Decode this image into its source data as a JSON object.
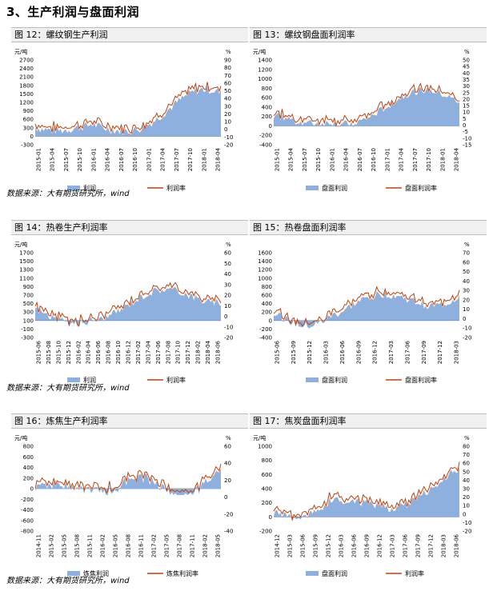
{
  "section_title": "3、生产利润与盘面利润",
  "sources": [
    "数据来源：大有期货研究所，wind",
    "数据来源：大有期货研究所，wind",
    "数据来源：大有期货研究所，wind"
  ],
  "colors": {
    "area": "#8eb0de",
    "line": "#c0420c",
    "header_bg": "#f0f0f0"
  },
  "figures": [
    {
      "title": "图 12：螺纹钢生产利润",
      "y_unit": "元/吨",
      "y2_unit": "%",
      "y_ticks": [
        "2700",
        "2400",
        "2100",
        "1800",
        "1500",
        "1200",
        "900",
        "600",
        "300",
        "0",
        "-300"
      ],
      "y2_ticks": [
        "90",
        "80",
        "70",
        "60",
        "50",
        "40",
        "30",
        "20",
        "10",
        "0",
        "-10",
        "-20"
      ],
      "x_ticks": [
        "2015-01",
        "2015-04",
        "2015-07",
        "2015-10",
        "2016-01",
        "2016-04",
        "2016-07",
        "2016-10",
        "2017-01",
        "2017-04",
        "2017-07",
        "2017-10",
        "2018-01",
        "2018-04"
      ],
      "legend": [
        "利润",
        "利润率"
      ]
    },
    {
      "title": "图 13：螺纹钢盘面利润率",
      "y_unit": "元/吨",
      "y2_unit": "%",
      "y_ticks": [
        "1400",
        "1200",
        "1000",
        "800",
        "600",
        "400",
        "200",
        "0",
        "-200",
        "-400"
      ],
      "y2_ticks": [
        "50",
        "45",
        "40",
        "35",
        "30",
        "25",
        "20",
        "15",
        "10",
        "5",
        "0",
        "-5",
        "-10",
        "-15"
      ],
      "x_ticks": [
        "2015-01",
        "2015-04",
        "2015-07",
        "2015-10",
        "2016-01",
        "2016-04",
        "2016-07",
        "2016-10",
        "2017-01",
        "2017-04",
        "2017-07",
        "2017-10",
        "2018-01",
        "2018-04"
      ],
      "legend": [
        "盘面利润",
        "盘面利润率"
      ]
    },
    {
      "title": "图 14：热卷生产利润率",
      "y_unit": "元/吨",
      "y2_unit": "%",
      "y_ticks": [
        "1700",
        "1500",
        "1300",
        "1100",
        "900",
        "700",
        "500",
        "300",
        "100",
        "-100",
        "-300"
      ],
      "y2_ticks": [
        "60",
        "50",
        "40",
        "30",
        "20",
        "10",
        "0",
        "-10",
        "-20"
      ],
      "x_ticks": [
        "2015-06",
        "2015-08",
        "2015-10",
        "2015-12",
        "2016-02",
        "2016-04",
        "2016-06",
        "2016-08",
        "2016-10",
        "2016-12",
        "2017-02",
        "2017-04",
        "2017-06",
        "2017-08",
        "2017-10",
        "2017-12",
        "2018-02",
        "2018-04",
        "2018-06"
      ],
      "legend": [
        "利润",
        "利润率"
      ]
    },
    {
      "title": "图 15：热卷盘面利润率",
      "y_unit": "",
      "y2_unit": "%",
      "y_ticks": [
        "1600",
        "1400",
        "1200",
        "1000",
        "800",
        "600",
        "400",
        "200",
        "0",
        "-200",
        "-400"
      ],
      "y2_ticks": [
        "70",
        "60",
        "50",
        "40",
        "30",
        "20",
        "10",
        "0",
        "-10",
        "-20"
      ],
      "x_ticks": [
        "2015-06",
        "2015-09",
        "2015-12",
        "2016-03",
        "2016-06",
        "2016-09",
        "2016-12",
        "2017-03",
        "2017-06",
        "2017-09",
        "2017-12",
        "2018-03"
      ],
      "legend": [
        "盘面利润",
        "盘面利润率"
      ]
    },
    {
      "title": "图 16：炼焦生产利润率",
      "y_unit": "元/吨",
      "y2_unit": "%",
      "y_ticks": [
        "800",
        "600",
        "400",
        "200",
        "0",
        "-200",
        "-400",
        "-600",
        "-800"
      ],
      "y2_ticks": [
        "60",
        "40",
        "20",
        "0",
        "-20",
        "-40"
      ],
      "x_ticks": [
        "2014-11",
        "2015-02",
        "2015-05",
        "2015-08",
        "2015-11",
        "2016-02",
        "2016-05",
        "2016-08",
        "2016-11",
        "2017-02",
        "2017-05",
        "2017-08",
        "2017-11",
        "2018-02",
        "2018-05"
      ],
      "legend": [
        "炼焦利润",
        "炼焦利润率"
      ]
    },
    {
      "title": "图 17：焦炭盘面利润率",
      "y_unit": "元/吨",
      "y2_unit": "%",
      "y_ticks": [
        "1000",
        "800",
        "600",
        "400",
        "200",
        "0",
        "-200"
      ],
      "y2_ticks": [
        "80",
        "70",
        "60",
        "50",
        "40",
        "30",
        "20",
        "10",
        "0",
        "-10",
        "-20"
      ],
      "x_ticks": [
        "2014-12",
        "2015-03",
        "2015-06",
        "2015-09",
        "2015-12",
        "2016-03",
        "2016-06",
        "2016-09",
        "2016-12",
        "2017-03",
        "2017-06",
        "2017-09",
        "2017-12",
        "2018-03",
        "2018-06"
      ],
      "legend": [
        "盘面利润",
        "利润率"
      ]
    }
  ]
}
